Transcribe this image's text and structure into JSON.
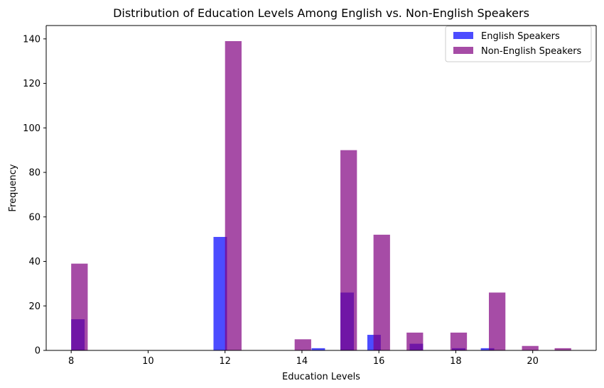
{
  "chart_data": {
    "type": "bar",
    "title": "Distribution of Education Levels Among English vs. Non-English Speakers",
    "xlabel": "Education Levels",
    "ylabel": "Frequency",
    "xlim": [
      7.35,
      21.65
    ],
    "ylim": [
      0,
      146
    ],
    "xticks": [
      "8",
      "10",
      "12",
      "14",
      "16",
      "18",
      "20"
    ],
    "yticks": [
      "0",
      "20",
      "40",
      "60",
      "80",
      "100",
      "120",
      "140"
    ],
    "grid": false,
    "legend_position": "top-right",
    "series": [
      {
        "name": "English Speakers",
        "color": "#0000ff",
        "opacity": 0.7,
        "bins": [
          {
            "start": 8.0,
            "end": 8.35,
            "value": 14
          },
          {
            "start": 11.7,
            "end": 12.05,
            "value": 51
          },
          {
            "start": 14.25,
            "end": 14.6,
            "value": 1
          },
          {
            "start": 15.0,
            "end": 15.35,
            "value": 26
          },
          {
            "start": 15.7,
            "end": 16.05,
            "value": 7
          },
          {
            "start": 16.8,
            "end": 17.15,
            "value": 3
          },
          {
            "start": 17.9,
            "end": 18.25,
            "value": 1
          },
          {
            "start": 18.65,
            "end": 19.0,
            "value": 1
          }
        ]
      },
      {
        "name": "Non-English Speakers",
        "color": "#800080",
        "opacity": 0.7,
        "bins": [
          {
            "start": 8.0,
            "end": 8.43,
            "value": 39
          },
          {
            "start": 12.0,
            "end": 12.43,
            "value": 139
          },
          {
            "start": 13.81,
            "end": 14.24,
            "value": 5
          },
          {
            "start": 15.0,
            "end": 15.43,
            "value": 90
          },
          {
            "start": 15.86,
            "end": 16.29,
            "value": 52
          },
          {
            "start": 16.72,
            "end": 17.15,
            "value": 8
          },
          {
            "start": 17.86,
            "end": 18.29,
            "value": 8
          },
          {
            "start": 18.86,
            "end": 19.29,
            "value": 26
          },
          {
            "start": 19.72,
            "end": 20.15,
            "value": 2
          },
          {
            "start": 20.57,
            "end": 21.0,
            "value": 1
          }
        ]
      }
    ]
  }
}
